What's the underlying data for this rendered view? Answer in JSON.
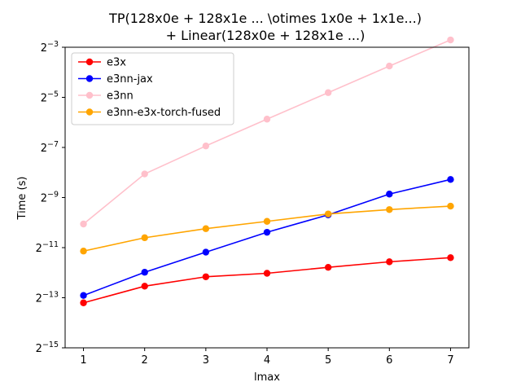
{
  "chart_data": {
    "type": "line",
    "title": [
      "TP(128x0e + 128x1e ... \\otimes 1x0e + 1x1e...)",
      "+ Linear(128x0e + 128x1e ...)"
    ],
    "xlabel": "lmax",
    "ylabel": "Time (s)",
    "x": [
      1,
      2,
      3,
      4,
      5,
      6,
      7
    ],
    "xlim": [
      0.7,
      7.3
    ],
    "yscale": "log2",
    "ylim_log2": [
      -15,
      -3
    ],
    "yticks_log2": [
      -15,
      -13,
      -11,
      -9,
      -7,
      -5,
      -3
    ],
    "yticks_mantissa": "2",
    "grid": false,
    "legend_position": "top-left",
    "series": [
      {
        "name": "e3x",
        "color": "#ff0000",
        "values": [
          0.000106,
          0.000168,
          0.000218,
          0.00024,
          0.000283,
          0.00033,
          0.00037
        ]
      },
      {
        "name": "e3nn-jax",
        "color": "#0000ff",
        "values": [
          0.00013,
          0.000247,
          0.000431,
          0.000747,
          0.00121,
          0.00215,
          0.00322
        ]
      },
      {
        "name": "e3nn",
        "color": "#ffc0cb",
        "values": [
          0.000939,
          0.00375,
          0.00814,
          0.0171,
          0.0356,
          0.0743,
          0.153
        ]
      },
      {
        "name": "e3nn-e3x-torch-fused",
        "color": "#ffa500",
        "values": [
          0.000444,
          0.000642,
          0.000825,
          0.00101,
          0.00124,
          0.0014,
          0.00154
        ]
      }
    ]
  }
}
